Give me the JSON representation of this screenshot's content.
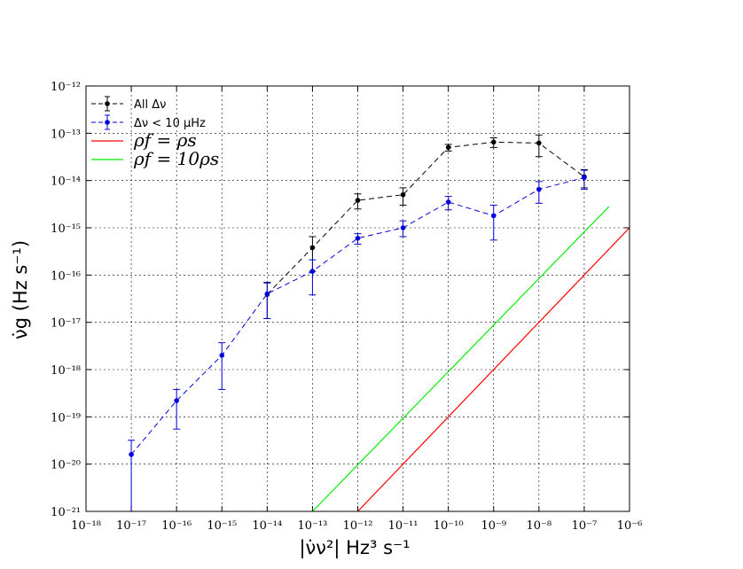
{
  "chart_data": {
    "type": "line",
    "xscale": "log",
    "yscale": "log",
    "xlim": [
      1e-18,
      1e-06
    ],
    "ylim": [
      1e-21,
      1e-12
    ],
    "grid": true,
    "legend_position": "top-left",
    "xlabel": "|ν̇ν²| Hz³ s⁻¹",
    "ylabel": "ν̇g (Hz s⁻¹)",
    "x_ticks": [
      "10⁻¹⁸",
      "10⁻¹⁷",
      "10⁻¹⁶",
      "10⁻¹⁵",
      "10⁻¹⁴",
      "10⁻¹³",
      "10⁻¹²",
      "10⁻¹¹",
      "10⁻¹⁰",
      "10⁻⁹",
      "10⁻⁸",
      "10⁻⁷",
      "10⁻⁶"
    ],
    "y_ticks": [
      "10⁻²¹",
      "10⁻²⁰",
      "10⁻¹⁹",
      "10⁻¹⁸",
      "10⁻¹⁷",
      "10⁻¹⁶",
      "10⁻¹⁵",
      "10⁻¹⁴",
      "10⁻¹³",
      "10⁻¹²"
    ],
    "series": [
      {
        "name": "All Δν",
        "color": "#000000",
        "style": "dashed-errorbar",
        "points": [
          {
            "x": 1e-14,
            "y": 3.9e-17,
            "ylo": 1.2e-17,
            "yhi": 7e-17
          },
          {
            "x": 1e-13,
            "y": 3.8e-16,
            "ylo": 1.2e-16,
            "yhi": 6.5e-16
          },
          {
            "x": 1e-12,
            "y": 3.8e-15,
            "ylo": 2.5e-15,
            "yhi": 5.2e-15
          },
          {
            "x": 1e-11,
            "y": 5e-15,
            "ylo": 3e-15,
            "yhi": 7e-15
          },
          {
            "x": 1e-10,
            "y": 5e-14,
            "ylo": 4.2e-14,
            "yhi": 5.8e-14
          },
          {
            "x": 1e-09,
            "y": 6.5e-14,
            "ylo": 5e-14,
            "yhi": 8e-14
          },
          {
            "x": 1e-08,
            "y": 6.2e-14,
            "ylo": 3.2e-14,
            "yhi": 9.2e-14
          },
          {
            "x": 1e-07,
            "y": 1.2e-14,
            "ylo": 7e-15,
            "yhi": 1.7e-14
          }
        ]
      },
      {
        "name": "Δν < 10 μHz",
        "color": "#0000dd",
        "style": "dashed-errorbar",
        "points": [
          {
            "x": 1e-17,
            "y": 1.6e-20,
            "ylo": 1e-21,
            "yhi": 3.2e-20
          },
          {
            "x": 1e-16,
            "y": 2.2e-19,
            "ylo": 5.5e-20,
            "yhi": 3.8e-19
          },
          {
            "x": 1e-15,
            "y": 2e-18,
            "ylo": 3.8e-19,
            "yhi": 3.7e-18
          },
          {
            "x": 1e-14,
            "y": 4e-17,
            "ylo": 1.2e-17,
            "yhi": 6.8e-17
          },
          {
            "x": 1e-13,
            "y": 1.2e-16,
            "ylo": 3.8e-17,
            "yhi": 2.1e-16
          },
          {
            "x": 1e-12,
            "y": 6e-16,
            "ylo": 4.5e-16,
            "yhi": 7.5e-16
          },
          {
            "x": 1e-11,
            "y": 1e-15,
            "ylo": 6.5e-16,
            "yhi": 1.4e-15
          },
          {
            "x": 1e-10,
            "y": 3.5e-15,
            "ylo": 2.4e-15,
            "yhi": 4.6e-15
          },
          {
            "x": 1e-09,
            "y": 1.8e-15,
            "ylo": 5.5e-16,
            "yhi": 3e-15
          },
          {
            "x": 1e-08,
            "y": 6.5e-15,
            "ylo": 3.3e-15,
            "yhi": 9.5e-15
          },
          {
            "x": 1e-07,
            "y": 1.15e-14,
            "ylo": 6.5e-15,
            "yhi": 1.65e-14
          }
        ]
      },
      {
        "name": "ρf = ρs",
        "color": "#ff0000",
        "style": "solid",
        "points": [
          {
            "x": 1e-12,
            "y": 1e-21
          },
          {
            "x": 1e-06,
            "y": 1e-15
          }
        ]
      },
      {
        "name": "ρf = 10ρs",
        "color": "#00ee00",
        "style": "solid",
        "points": [
          {
            "x": 1e-13,
            "y": 1e-21
          },
          {
            "x": 3.5e-07,
            "y": 2.8e-15
          }
        ]
      }
    ],
    "legend": [
      {
        "label": "All Δν",
        "color": "#000000",
        "kind": "errorbar"
      },
      {
        "label": "Δν < 10 μHz",
        "color": "#0000dd",
        "kind": "errorbar"
      },
      {
        "label": "ρf = ρs",
        "color": "#ff0000",
        "kind": "line",
        "math": true
      },
      {
        "label": "ρf = 10ρs",
        "color": "#00ee00",
        "kind": "line",
        "math": true
      }
    ]
  }
}
